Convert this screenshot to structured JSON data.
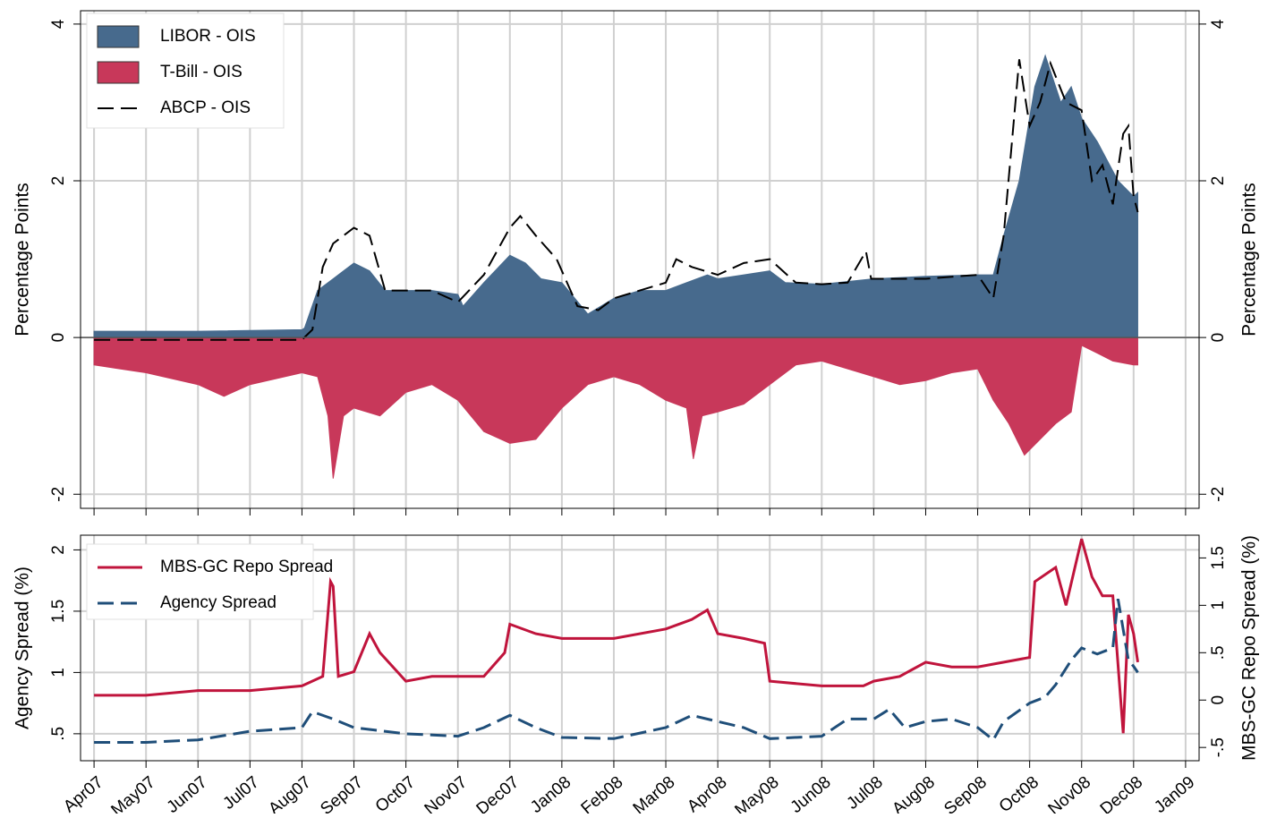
{
  "chart_data": [
    {
      "type": "area",
      "xlim": [
        -0.26,
        21.26
      ],
      "xticks": [
        0,
        1,
        2,
        3,
        4,
        5,
        6,
        7,
        8,
        9,
        10,
        11,
        12,
        13,
        14,
        15,
        16,
        17,
        18,
        19,
        20,
        21
      ],
      "ylabel": "Percentage Points",
      "y2label": "Percentage Points",
      "ylim": [
        -2.18,
        4.17
      ],
      "yticks": [
        -2,
        0,
        2,
        4
      ],
      "grid": true,
      "series": [
        {
          "name": "LIBOR - OIS",
          "color": "#476a8d",
          "style": "area",
          "x": [
            0,
            2,
            4,
            4.05,
            4.3,
            4.6,
            5,
            5.3,
            5.6,
            6,
            6.5,
            7,
            7.1,
            7.5,
            8,
            8.3,
            8.6,
            9,
            9.5,
            10,
            10.5,
            11,
            11.8,
            12,
            12.5,
            13,
            13.3,
            14,
            15,
            16,
            17,
            17.3,
            17.5,
            17.8,
            18.1,
            18.3,
            18.6,
            18.8,
            19,
            19.3,
            19.7,
            20,
            20.08
          ],
          "values": [
            0.08,
            0.08,
            0.1,
            0.12,
            0.6,
            0.75,
            0.95,
            0.85,
            0.6,
            0.6,
            0.6,
            0.55,
            0.4,
            0.7,
            1.05,
            0.95,
            0.75,
            0.7,
            0.3,
            0.5,
            0.6,
            0.6,
            0.8,
            0.75,
            0.8,
            0.85,
            0.7,
            0.68,
            0.75,
            0.78,
            0.8,
            0.8,
            1.3,
            2.0,
            3.2,
            3.6,
            3.0,
            3.2,
            2.8,
            2.5,
            2.0,
            1.8,
            1.85
          ]
        },
        {
          "name": "T-Bill - OIS",
          "color": "#c8385a",
          "style": "area",
          "x": [
            0,
            1,
            2,
            2.5,
            3,
            4,
            4.3,
            4.5,
            4.6,
            4.8,
            5,
            5.5,
            6,
            6.5,
            7,
            7.5,
            8,
            8.5,
            9,
            9.5,
            10,
            10.5,
            11,
            11.4,
            11.53,
            11.7,
            12,
            12.5,
            13,
            13.5,
            14,
            14.5,
            15,
            15.5,
            16,
            16.5,
            17,
            17.3,
            17.6,
            17.9,
            18.2,
            18.5,
            18.8,
            19,
            19.3,
            19.6,
            20,
            20.08
          ],
          "values": [
            -0.35,
            -0.45,
            -0.6,
            -0.75,
            -0.6,
            -0.45,
            -0.5,
            -1.0,
            -1.8,
            -1.0,
            -0.9,
            -1.0,
            -0.7,
            -0.6,
            -0.8,
            -1.2,
            -1.35,
            -1.3,
            -0.9,
            -0.6,
            -0.5,
            -0.6,
            -0.8,
            -0.9,
            -1.55,
            -1.0,
            -0.95,
            -0.85,
            -0.6,
            -0.35,
            -0.3,
            -0.4,
            -0.5,
            -0.6,
            -0.55,
            -0.45,
            -0.4,
            -0.8,
            -1.1,
            -1.5,
            -1.3,
            -1.1,
            -0.95,
            -0.1,
            -0.2,
            -0.3,
            -0.35,
            -0.35
          ]
        },
        {
          "name": "ABCP - OIS",
          "color": "#000000",
          "style": "dashed",
          "x": [
            0,
            4,
            4.2,
            4.4,
            4.6,
            4.8,
            5,
            5.3,
            5.6,
            6,
            6.5,
            7,
            7.5,
            8,
            8.2,
            8.5,
            8.9,
            9.3,
            9.7,
            10,
            10.5,
            11,
            11.2,
            11.5,
            12,
            12.5,
            13,
            13.5,
            14,
            14.5,
            14.85,
            14.95,
            15,
            16,
            17,
            17.3,
            17.5,
            17.8,
            18,
            18.2,
            18.4,
            18.7,
            19,
            19.2,
            19.4,
            19.6,
            19.8,
            19.9,
            20,
            20.08
          ],
          "values": [
            -0.03,
            -0.03,
            0.1,
            0.9,
            1.2,
            1.3,
            1.4,
            1.3,
            0.6,
            0.6,
            0.6,
            0.45,
            0.8,
            1.4,
            1.55,
            1.3,
            1.0,
            0.4,
            0.35,
            0.5,
            0.6,
            0.7,
            1.0,
            0.9,
            0.8,
            0.95,
            1.0,
            0.7,
            0.68,
            0.7,
            1.1,
            0.75,
            0.75,
            0.75,
            0.8,
            0.5,
            1.3,
            3.55,
            2.7,
            3.0,
            3.5,
            3.0,
            2.9,
            2.0,
            2.2,
            1.7,
            2.6,
            2.7,
            1.8,
            1.6
          ]
        }
      ]
    },
    {
      "type": "line",
      "xlim": [
        -0.26,
        21.26
      ],
      "xticks": [
        {
          "value": 0,
          "label": "Apr07"
        },
        {
          "value": 1,
          "label": "May07"
        },
        {
          "value": 2,
          "label": "Jun07"
        },
        {
          "value": 3,
          "label": "Jul07"
        },
        {
          "value": 4,
          "label": "Aug07"
        },
        {
          "value": 5,
          "label": "Sep07"
        },
        {
          "value": 6,
          "label": "Oct07"
        },
        {
          "value": 7,
          "label": "Nov07"
        },
        {
          "value": 8,
          "label": "Dec07"
        },
        {
          "value": 9,
          "label": "Jan08"
        },
        {
          "value": 10,
          "label": "Feb08"
        },
        {
          "value": 11,
          "label": "Mar08"
        },
        {
          "value": 12,
          "label": "Apr08"
        },
        {
          "value": 13,
          "label": "May08"
        },
        {
          "value": 14,
          "label": "Jun08"
        },
        {
          "value": 15,
          "label": "Jul08"
        },
        {
          "value": 16,
          "label": "Aug08"
        },
        {
          "value": 17,
          "label": "Sep08"
        },
        {
          "value": 18,
          "label": "Oct08"
        },
        {
          "value": 19,
          "label": "Nov08"
        },
        {
          "value": 20,
          "label": "Dec08"
        },
        {
          "value": 21,
          "label": "Jan09"
        }
      ],
      "ylabel": "Agency Spread (%)",
      "y2label": "MBS-GC Repo Spread (%)",
      "ylim": [
        0.28,
        2.12
      ],
      "yticks": [
        {
          "value": 0.5,
          "label": ".5"
        },
        1,
        1.5,
        2
      ],
      "y2lim": [
        -0.64,
        1.74
      ],
      "y2ticks": [
        {
          "value": -0.5,
          "label": "-.5"
        },
        0,
        {
          "value": 0.5,
          "label": ".5"
        },
        1,
        1.5
      ],
      "grid": true,
      "series": [
        {
          "name": "MBS-GC Repo Spread",
          "color": "#c0143c",
          "style": "solid",
          "axis": "y2",
          "x": [
            0,
            1,
            2,
            3,
            4,
            4.4,
            4.55,
            4.6,
            4.7,
            5,
            5.3,
            5.5,
            6,
            6.5,
            7,
            7.5,
            7.9,
            8,
            8.5,
            9,
            10,
            11,
            11.5,
            11.8,
            12,
            12.5,
            12.9,
            13,
            14,
            14.8,
            15,
            15.5,
            16,
            16.5,
            17,
            18,
            18.1,
            18.5,
            18.7,
            19,
            19.2,
            19.4,
            19.6,
            19.8,
            19.9,
            20,
            20.08
          ],
          "values": [
            0.05,
            0.05,
            0.1,
            0.1,
            0.15,
            0.25,
            1.25,
            1.2,
            0.25,
            0.3,
            0.7,
            0.5,
            0.2,
            0.25,
            0.25,
            0.25,
            0.5,
            0.8,
            0.7,
            0.65,
            0.65,
            0.75,
            0.85,
            0.95,
            0.7,
            0.65,
            0.6,
            0.2,
            0.15,
            0.15,
            0.2,
            0.25,
            0.4,
            0.35,
            0.35,
            0.45,
            1.25,
            1.4,
            1.0,
            1.7,
            1.3,
            1.1,
            1.1,
            -0.35,
            0.9,
            0.7,
            0.4
          ]
        },
        {
          "name": "Agency Spread",
          "color": "#1f4e79",
          "style": "dashed",
          "x": [
            0,
            1,
            2,
            3,
            4,
            4.2,
            4.6,
            5,
            6,
            7,
            7.5,
            8,
            8.5,
            9,
            10,
            11,
            11.5,
            12,
            12.5,
            13,
            14,
            14.5,
            15,
            15.3,
            15.6,
            16,
            16.5,
            17,
            17.3,
            17.5,
            18,
            18.3,
            18.5,
            18.8,
            19,
            19.3,
            19.6,
            19.7,
            19.9,
            20,
            20.08
          ],
          "values": [
            0.43,
            0.43,
            0.45,
            0.52,
            0.55,
            0.68,
            0.62,
            0.55,
            0.5,
            0.48,
            0.55,
            0.65,
            0.55,
            0.47,
            0.46,
            0.55,
            0.65,
            0.6,
            0.55,
            0.46,
            0.48,
            0.62,
            0.62,
            0.7,
            0.55,
            0.6,
            0.62,
            0.55,
            0.45,
            0.6,
            0.75,
            0.8,
            0.9,
            1.1,
            1.2,
            1.15,
            1.2,
            1.6,
            1.1,
            1.05,
            1.0
          ]
        }
      ]
    }
  ]
}
